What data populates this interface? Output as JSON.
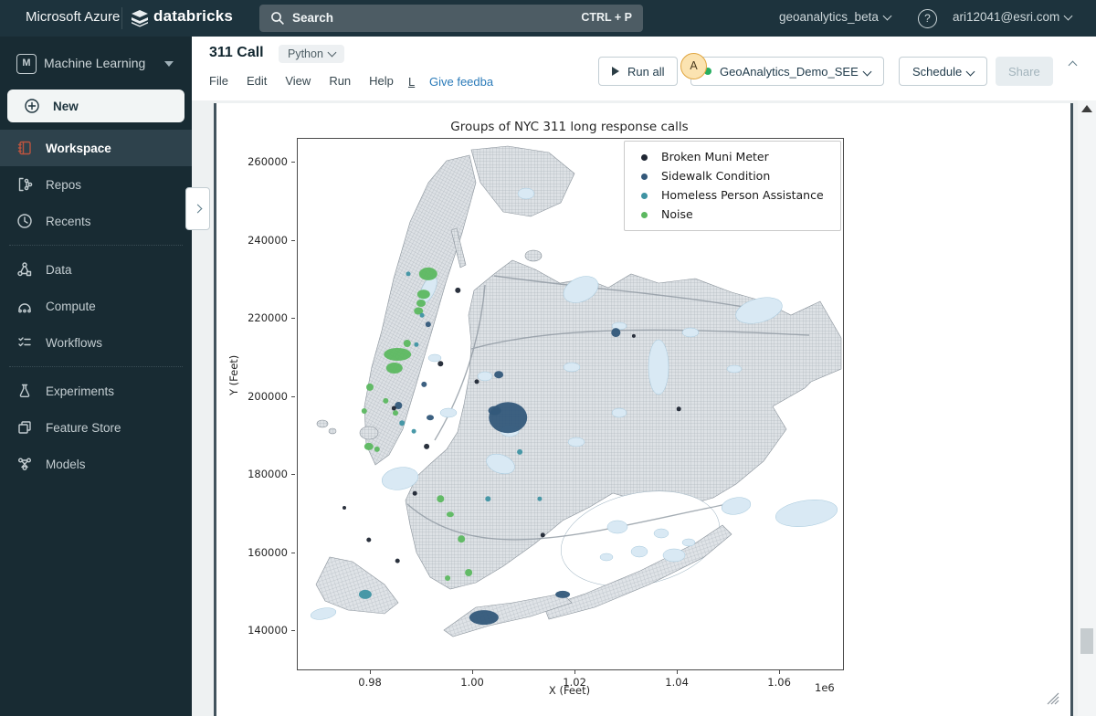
{
  "colors": {
    "topbar_bg": "#1d333d",
    "sidebar_bg": "#182b33",
    "accent_link": "#2b7bb9",
    "cluster_status_green": "#27ae60",
    "workspace_icon_orange": "#bc543f"
  },
  "topbar": {
    "azure_label": "Microsoft Azure",
    "brand": "databricks",
    "search": {
      "placeholder": "Search",
      "shortcut": "CTRL + P"
    },
    "workspace_selector": "geoanalytics_beta",
    "help_glyph": "?",
    "user_email": "ari12041@esri.com"
  },
  "sidebar": {
    "persona": "Machine Learning",
    "persona_badge": "M",
    "groups": [
      [
        {
          "label": "New",
          "icon": "plus-circle-icon",
          "style": "new"
        },
        {
          "label": "Workspace",
          "icon": "workspace-icon",
          "active": true
        },
        {
          "label": "Repos",
          "icon": "repos-icon"
        },
        {
          "label": "Recents",
          "icon": "clock-icon"
        }
      ],
      [
        {
          "label": "Data",
          "icon": "data-icon"
        },
        {
          "label": "Compute",
          "icon": "compute-icon"
        },
        {
          "label": "Workflows",
          "icon": "workflows-icon"
        }
      ],
      [
        {
          "label": "Experiments",
          "icon": "flask-icon"
        },
        {
          "label": "Feature Store",
          "icon": "feature-store-icon"
        },
        {
          "label": "Models",
          "icon": "models-icon"
        }
      ]
    ]
  },
  "header": {
    "title": "311 Call",
    "language": "Python",
    "menus": [
      "File",
      "Edit",
      "View",
      "Run",
      "Help"
    ],
    "truncated_link": "L",
    "feedback_link": "Give feedba",
    "avatar_initial": "A",
    "buttons": {
      "run_all": "Run all",
      "cluster": "GeoAnalytics_Demo_SEE",
      "schedule": "Schedule",
      "share": "Share"
    }
  },
  "chart_data": {
    "type": "scatter",
    "title": "Groups of NYC 311 long response calls",
    "xlabel": "X (Feet)",
    "ylabel": "Y (Feet)",
    "offset_label": "1e6",
    "grid": false,
    "legend_position": "upper right",
    "xlim": [
      965700,
      1072300
    ],
    "ylim": [
      130200,
      266100
    ],
    "x_ticks": {
      "values": [
        980000,
        1000000,
        1020000,
        1040000,
        1060000
      ],
      "labels": [
        "0.98",
        "1.00",
        "1.02",
        "1.04",
        "1.06"
      ]
    },
    "y_ticks": {
      "values": [
        260000,
        240000,
        220000,
        200000,
        180000,
        160000,
        140000
      ],
      "labels": [
        "260000",
        "240000",
        "220000",
        "200000",
        "180000",
        "160000",
        "140000"
      ]
    },
    "series": [
      {
        "name": "Broken Muni Meter",
        "color": "#1f2633"
      },
      {
        "name": "Sidewalk Condition",
        "color": "#33587a"
      },
      {
        "name": "Homeless Person Assistance",
        "color": "#3f93a3"
      },
      {
        "name": "Noise",
        "color": "#5cb860"
      }
    ],
    "clusters": [
      [
        3,
        991200,
        231500,
        10,
        7
      ],
      [
        3,
        990300,
        226300,
        7,
        5
      ],
      [
        3,
        989800,
        224000,
        5,
        4
      ],
      [
        3,
        989300,
        222000,
        5,
        4
      ],
      [
        3,
        985200,
        210900,
        15,
        7
      ],
      [
        3,
        984600,
        207400,
        9,
        6
      ],
      [
        3,
        987100,
        213700,
        4,
        4
      ],
      [
        3,
        979800,
        202500,
        4,
        4
      ],
      [
        3,
        982900,
        199000,
        3,
        3
      ],
      [
        3,
        984800,
        195900,
        3,
        3
      ],
      [
        3,
        978700,
        196400,
        3,
        3
      ],
      [
        3,
        979600,
        187300,
        5,
        4
      ],
      [
        3,
        981200,
        186600,
        3,
        3
      ],
      [
        3,
        993600,
        173900,
        4,
        4
      ],
      [
        3,
        995500,
        169900,
        4,
        3
      ],
      [
        3,
        997700,
        163600,
        4,
        4
      ],
      [
        3,
        999100,
        155000,
        4,
        4
      ],
      [
        3,
        995000,
        153600,
        3,
        3
      ],
      [
        1,
        1006800,
        194700,
        21,
        17
      ],
      [
        1,
        1004200,
        196500,
        7,
        5
      ],
      [
        1,
        1002100,
        143500,
        16,
        8
      ],
      [
        1,
        1017500,
        149400,
        8,
        4
      ],
      [
        1,
        1005000,
        205700,
        5,
        4
      ],
      [
        1,
        991200,
        218600,
        3,
        3
      ],
      [
        1,
        991600,
        194700,
        4,
        3
      ],
      [
        1,
        985400,
        197800,
        4,
        4
      ],
      [
        1,
        990400,
        203200,
        3,
        3
      ],
      [
        1,
        1027900,
        216500,
        5,
        5
      ],
      [
        0,
        997000,
        227300,
        3,
        3
      ],
      [
        0,
        993600,
        208500,
        3,
        3
      ],
      [
        0,
        984500,
        197100,
        2.5,
        2.5
      ],
      [
        0,
        990900,
        187300,
        3,
        3
      ],
      [
        0,
        988600,
        175300,
        2.5,
        2.5
      ],
      [
        0,
        985200,
        158000,
        2.5,
        2.5
      ],
      [
        0,
        1013600,
        164600,
        2.5,
        2.5
      ],
      [
        0,
        979600,
        163400,
        2.5,
        2.5
      ],
      [
        0,
        974800,
        171600,
        2,
        2
      ],
      [
        0,
        1000700,
        203900,
        2.5,
        2.5
      ],
      [
        0,
        1031400,
        215600,
        2,
        2
      ],
      [
        0,
        1040200,
        196900,
        2.5,
        2.5
      ],
      [
        2,
        978900,
        149400,
        7,
        5
      ],
      [
        2,
        986100,
        193300,
        3,
        3
      ],
      [
        2,
        988400,
        191200,
        2.5,
        2.5
      ],
      [
        2,
        1002900,
        173900,
        3,
        3
      ],
      [
        2,
        1009100,
        185900,
        3,
        3
      ],
      [
        2,
        1013000,
        173900,
        2.5,
        2.5
      ],
      [
        2,
        988900,
        213400,
        2.5,
        2.5
      ],
      [
        2,
        987300,
        231500,
        2.5,
        2.5
      ],
      [
        2,
        990000,
        220900,
        2.5,
        2.5
      ]
    ]
  }
}
